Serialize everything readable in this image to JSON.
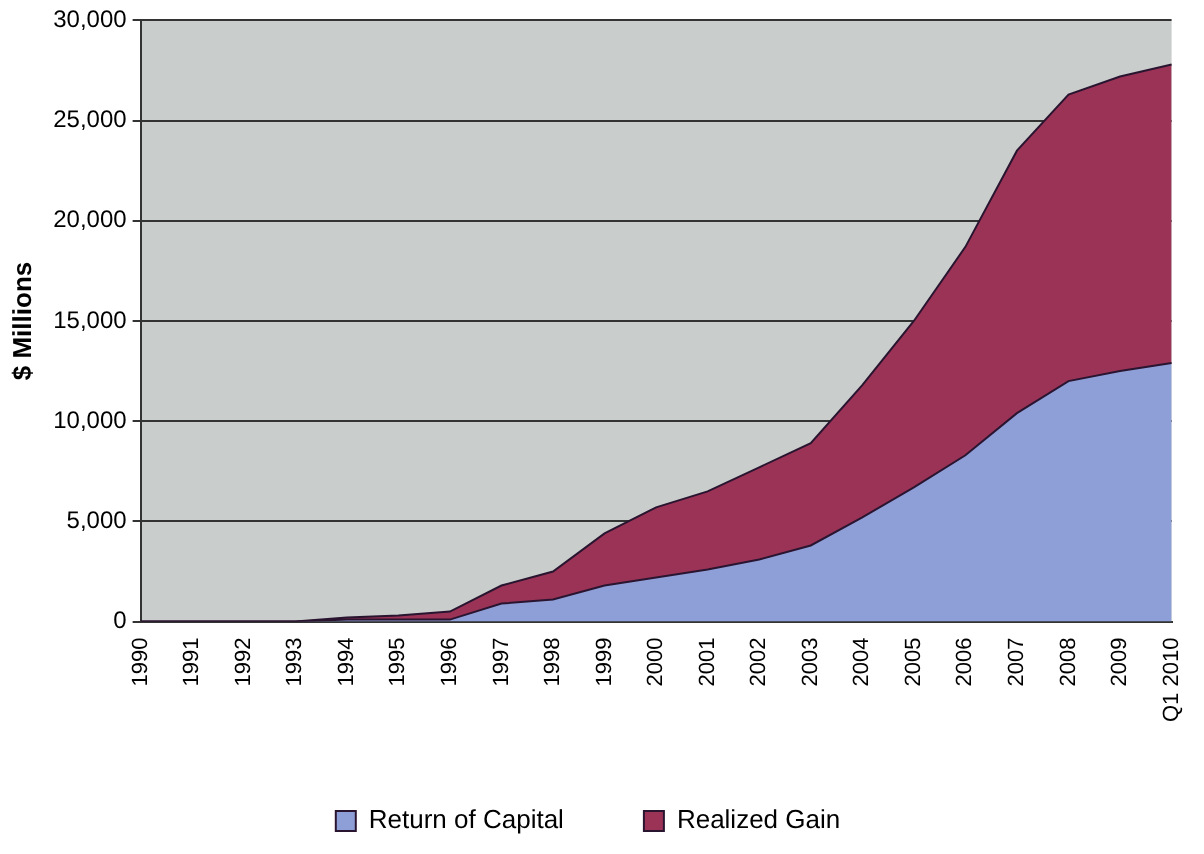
{
  "chart_data": {
    "type": "area",
    "stacked": true,
    "ylabel": "$ Millions",
    "categories": [
      "1990",
      "1991",
      "1992",
      "1993",
      "1994",
      "1995",
      "1996",
      "1997",
      "1998",
      "1999",
      "2000",
      "2001",
      "2002",
      "2003",
      "2004",
      "2005",
      "2006",
      "2007",
      "2008",
      "2009",
      "Q1 2010"
    ],
    "series": [
      {
        "name": "Return of Capital",
        "color": "#8e9fd8",
        "values": [
          0,
          0,
          0,
          0,
          100,
          100,
          100,
          900,
          1100,
          1800,
          2200,
          2600,
          3100,
          3800,
          5200,
          6700,
          8300,
          10400,
          12000,
          12500,
          12900
        ]
      },
      {
        "name": "Realized Gain",
        "color": "#9b3357",
        "values": [
          0,
          0,
          0,
          0,
          100,
          200,
          400,
          900,
          1400,
          2600,
          3500,
          3900,
          4600,
          5100,
          6600,
          8300,
          10400,
          13100,
          14300,
          14700,
          14900
        ]
      }
    ],
    "ylim": [
      0,
      30000
    ],
    "yticks": [
      0,
      {
        "value": 5000,
        "label": "5,000"
      },
      {
        "value": 10000,
        "label": "10,000"
      },
      {
        "value": 15000,
        "label": "15,000"
      },
      {
        "value": 20000,
        "label": "20,000"
      },
      {
        "value": 25000,
        "label": "25,000"
      },
      {
        "value": 30000,
        "label": "30,000"
      }
    ],
    "grid": "y",
    "legend": "bottom"
  }
}
